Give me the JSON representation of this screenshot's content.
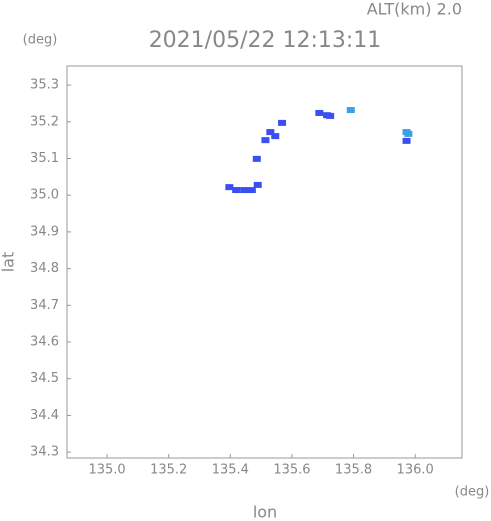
{
  "chart_data": {
    "type": "scatter",
    "title": "2021/05/22 12:13:11",
    "subtitle": "ALT(km) 2.0",
    "y_unit": "(deg)",
    "x_unit": "(deg)",
    "x_label": "lon",
    "y_label": "lat",
    "xlim": [
      134.87,
      136.152
    ],
    "ylim": [
      34.284,
      35.352
    ],
    "xticks": [
      {
        "value": 135.0,
        "label": "135.0"
      },
      135.2,
      135.4,
      135.6,
      135.8,
      {
        "value": 136.0,
        "label": "136.0"
      }
    ],
    "yticks": [
      34.3,
      34.4,
      34.5,
      34.6,
      34.7,
      34.8,
      34.9,
      {
        "value": 35.0,
        "label": "35.0"
      },
      35.1,
      35.2,
      35.3
    ],
    "grid": false,
    "series": [
      {
        "color": "#3a4ff2",
        "x": [
          135.397,
          135.419,
          135.445,
          135.47,
          135.489,
          135.486,
          135.514,
          135.53,
          135.546,
          135.568,
          135.689,
          135.714,
          135.724,
          135.972
        ],
        "values": [
          35.022,
          35.014,
          35.014,
          35.014,
          35.028,
          35.099,
          35.15,
          35.172,
          35.161,
          35.197,
          35.224,
          35.218,
          35.216,
          35.148
        ]
      },
      {
        "color": "#3aa0ea",
        "x": [
          135.791,
          135.972,
          135.978
        ],
        "values": [
          35.232,
          35.172,
          35.167
        ]
      }
    ]
  }
}
